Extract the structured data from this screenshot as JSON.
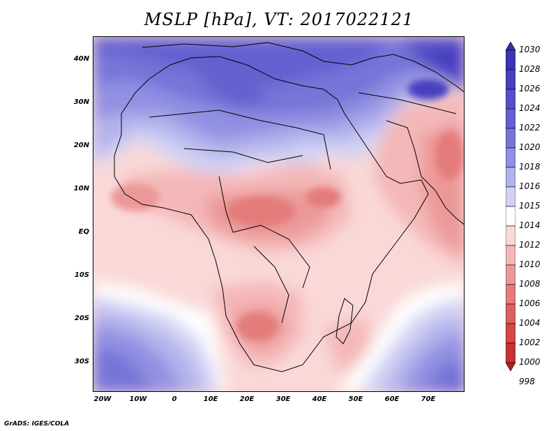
{
  "title": "MSLP [hPa], VT: 2017022121",
  "credit": "GrADS: IGES/COLA",
  "axes": {
    "lat_labels": [
      {
        "text": "40N",
        "lat": 40
      },
      {
        "text": "30N",
        "lat": 30
      },
      {
        "text": "20N",
        "lat": 20
      },
      {
        "text": "10N",
        "lat": 10
      },
      {
        "text": "EQ",
        "lat": 0
      },
      {
        "text": "10S",
        "lat": -10
      },
      {
        "text": "20S",
        "lat": -20
      },
      {
        "text": "30S",
        "lat": -30
      }
    ],
    "lon_labels": [
      {
        "text": "20W",
        "lon": -20
      },
      {
        "text": "10W",
        "lon": -10
      },
      {
        "text": "0",
        "lon": 0
      },
      {
        "text": "10E",
        "lon": 10
      },
      {
        "text": "20E",
        "lon": 20
      },
      {
        "text": "30E",
        "lon": 30
      },
      {
        "text": "40E",
        "lon": 40
      },
      {
        "text": "50E",
        "lon": 50
      },
      {
        "text": "60E",
        "lon": 60
      },
      {
        "text": "70E",
        "lon": 70
      }
    ],
    "lon_range": [
      -22,
      80
    ],
    "lat_range": [
      -37,
      45
    ]
  },
  "colorbar": {
    "levels": [
      {
        "label": "1030",
        "color": "#3c2ca8"
      },
      {
        "label": "1028",
        "color": "#3d34b4"
      },
      {
        "label": "1026",
        "color": "#4840c0"
      },
      {
        "label": "1024",
        "color": "#5550c8"
      },
      {
        "label": "1022",
        "color": "#6460d0"
      },
      {
        "label": "1020",
        "color": "#7674d8"
      },
      {
        "label": "1018",
        "color": "#9290e2"
      },
      {
        "label": "1016",
        "color": "#b2b2ec"
      },
      {
        "label": "1015",
        "color": "#d2d2f4"
      },
      {
        "label": "1014",
        "color": "#ffffff"
      },
      {
        "label": "1012",
        "color": "#fad8d8"
      },
      {
        "label": "1010",
        "color": "#f4b8b8"
      },
      {
        "label": "1008",
        "color": "#ec9898"
      },
      {
        "label": "1006",
        "color": "#e47c7c"
      },
      {
        "label": "1004",
        "color": "#dc6060"
      },
      {
        "label": "1002",
        "color": "#d44848"
      },
      {
        "label": "1000",
        "color": "#c83232"
      },
      {
        "label": "998",
        "color": "#b02020"
      }
    ]
  }
}
